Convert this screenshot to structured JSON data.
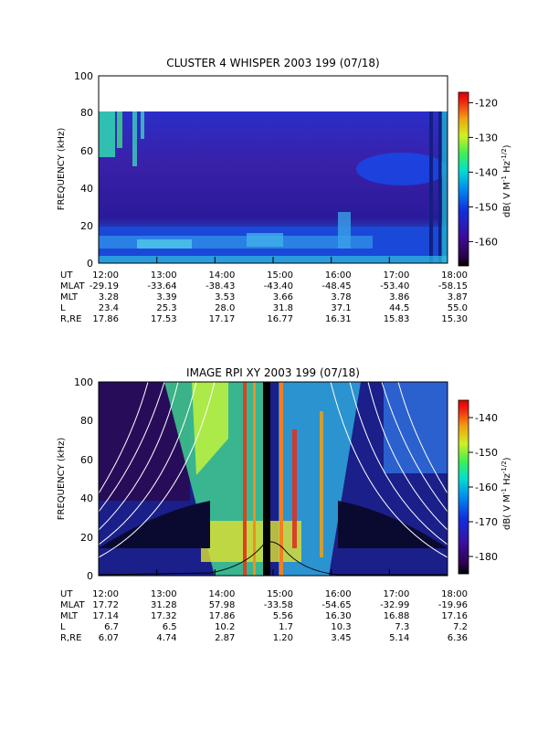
{
  "chart_data": [
    {
      "type": "heatmap",
      "title": "CLUSTER 4 WHISPER 2003 199 (07/18)",
      "ylabel": "FREQUENCY (kHz)",
      "ylim": [
        0,
        100
      ],
      "y_ticks": [
        "0",
        "20",
        "40",
        "60",
        "80",
        "100"
      ],
      "x_ticks": [
        "12:00",
        "13:00",
        "14:00",
        "15:00",
        "16:00",
        "17:00",
        "18:00"
      ],
      "colorbar": {
        "label": "dB( V M",
        "label_sup1": "-1",
        "label_mid": " Hz",
        "label_sup2": "-1/2",
        "label_end": ")",
        "ticks": [
          "-120",
          "-130",
          "-140",
          "-150",
          "-160"
        ],
        "range": [
          -167,
          -117
        ]
      },
      "ephemeris": {
        "labels": [
          "UT",
          "MLAT",
          "MLT",
          "L",
          "R,RE"
        ],
        "rows": [
          [
            "12:00",
            "13:00",
            "14:00",
            "15:00",
            "16:00",
            "17:00",
            "18:00"
          ],
          [
            "-29.19",
            "-33.64",
            "-38.43",
            "-43.40",
            "-48.45",
            "-53.40",
            "-58.15"
          ],
          [
            "3.28",
            "3.39",
            "3.53",
            "3.66",
            "3.78",
            "3.86",
            "3.87"
          ],
          [
            "23.4",
            "25.3",
            "28.0",
            "31.8",
            "37.1",
            "44.5",
            "55.0"
          ],
          [
            "17.86",
            "17.53",
            "17.17",
            "16.77",
            "16.31",
            "15.83",
            "15.30"
          ]
        ]
      }
    },
    {
      "type": "heatmap",
      "title": "IMAGE RPI XY 2003 199 (07/18)",
      "ylabel": "FREQUENCY (kHz)",
      "ylim": [
        0,
        100
      ],
      "y_ticks": [
        "0",
        "20",
        "40",
        "60",
        "80",
        "100"
      ],
      "x_ticks": [
        "12:00",
        "13:00",
        "14:00",
        "15:00",
        "16:00",
        "17:00",
        "18:00"
      ],
      "colorbar": {
        "label": "dB( V M",
        "label_sup1": "-1",
        "label_mid": " Hz",
        "label_sup2": "-1/2",
        "label_end": ")",
        "ticks": [
          "-140",
          "-150",
          "-160",
          "-170",
          "-180"
        ],
        "range": [
          -185,
          -135
        ]
      },
      "ephemeris": {
        "labels": [
          "UT",
          "MLAT",
          "MLT",
          "L",
          "R,RE"
        ],
        "rows": [
          [
            "12:00",
            "13:00",
            "14:00",
            "15:00",
            "16:00",
            "17:00",
            "18:00"
          ],
          [
            "17.72",
            "31.28",
            "57.98",
            "-33.58",
            "-54.65",
            "-32.99",
            "-19.96"
          ],
          [
            "17.14",
            "17.32",
            "17.86",
            "5.56",
            "16.30",
            "16.88",
            "17.16"
          ],
          [
            "6.7",
            "6.5",
            "10.2",
            "1.7",
            "10.3",
            "7.3",
            "7.2"
          ],
          [
            "6.07",
            "4.74",
            "2.87",
            "1.20",
            "3.45",
            "5.14",
            "6.36"
          ]
        ]
      }
    }
  ]
}
